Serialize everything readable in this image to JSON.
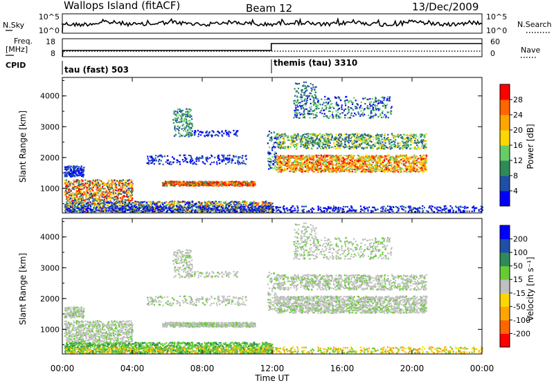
{
  "header": {
    "station": "Wallops Island (fitACF)",
    "beam": "Beam 12",
    "date": "13/Dec/2009"
  },
  "left_labels": {
    "nsky": "N.Sky",
    "freq_line1": "Freq.",
    "freq_line2": "[MHz]",
    "cpid": "CPID"
  },
  "right_labels": {
    "nsearch": "N.Search",
    "nave": "Nave"
  },
  "cpid_segments": [
    {
      "label": "tau (fast) 503",
      "start_hour": 0
    },
    {
      "label": "themis (tau) 3310",
      "start_hour": 12
    }
  ],
  "colors": {
    "power_scale": [
      "#0000ff",
      "#1f4fa8",
      "#2e8b57",
      "#66cc66",
      "#ffd700",
      "#ffa500",
      "#ff6600",
      "#ff0000"
    ],
    "velocity_scale": [
      "#ff0000",
      "#ff6600",
      "#ffa500",
      "#ffd700",
      "#c0c0c0",
      "#c0c0c0",
      "#66cc33",
      "#2e8b57",
      "#1f4fa8",
      "#0000ff"
    ]
  },
  "chart_data": [
    {
      "type": "line",
      "name": "noise-sky-search",
      "y_ticks": [
        "10^5",
        "10^0"
      ],
      "right_y_ticks": [
        "10^5",
        "10^0"
      ]
    },
    {
      "type": "line",
      "name": "frequency-nave",
      "y_ticks": [
        18,
        8
      ],
      "right_y_ticks": [
        60,
        0
      ]
    },
    {
      "type": "heatmap",
      "name": "power",
      "ylabel": "Slant Range [km]",
      "y_ticks": [
        1000,
        2000,
        3000,
        4000
      ],
      "ylim": [
        200,
        4600
      ],
      "colorbar_label": "Power [dB]",
      "colorbar_ticks": [
        4,
        8,
        12,
        16,
        20,
        24,
        28
      ]
    },
    {
      "type": "heatmap",
      "name": "velocity",
      "ylabel": "Slant Range [km]",
      "y_ticks": [
        1000,
        2000,
        3000,
        4000
      ],
      "ylim": [
        200,
        4600
      ],
      "colorbar_label": "Velocity [m s⁻¹]",
      "colorbar_ticks": [
        -200,
        -100,
        -50,
        -15,
        15,
        50,
        100,
        200
      ],
      "x_ticks": [
        "00:00",
        "04:00",
        "08:00",
        "12:00",
        "16:00",
        "20:00",
        "00:00"
      ],
      "xlabel": "Time UT",
      "xlim_hours": [
        0,
        24
      ]
    }
  ]
}
